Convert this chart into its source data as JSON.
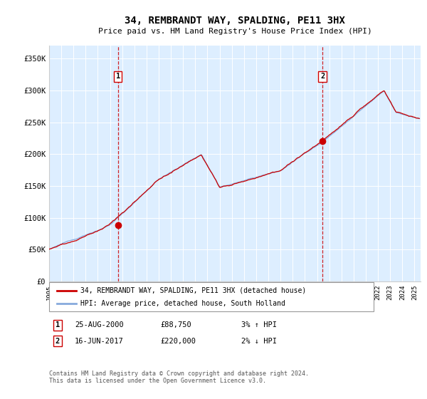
{
  "title": "34, REMBRANDT WAY, SPALDING, PE11 3HX",
  "subtitle": "Price paid vs. HM Land Registry's House Price Index (HPI)",
  "legend_line1": "34, REMBRANDT WAY, SPALDING, PE11 3HX (detached house)",
  "legend_line2": "HPI: Average price, detached house, South Holland",
  "annotation1_date": "25-AUG-2000",
  "annotation1_price": "£88,750",
  "annotation1_hpi": "3% ↑ HPI",
  "annotation2_date": "16-JUN-2017",
  "annotation2_price": "£220,000",
  "annotation2_hpi": "2% ↓ HPI",
  "footer": "Contains HM Land Registry data © Crown copyright and database right 2024.\nThis data is licensed under the Open Government Licence v3.0.",
  "ylim": [
    0,
    370000
  ],
  "yticks": [
    0,
    50000,
    100000,
    150000,
    200000,
    250000,
    300000,
    350000
  ],
  "ytick_labels": [
    "£0",
    "£50K",
    "£100K",
    "£150K",
    "£200K",
    "£250K",
    "£300K",
    "£350K"
  ],
  "xlim_start": 1995.0,
  "xlim_end": 2025.5,
  "marker1_x": 2000.65,
  "marker2_x": 2017.45,
  "marker1_y": 88750,
  "marker2_y": 220000,
  "hpi_color": "#88aadd",
  "house_color": "#cc0000",
  "bg_color": "#ddeeff",
  "grid_color": "#ffffff",
  "marker_color": "#cc0000"
}
